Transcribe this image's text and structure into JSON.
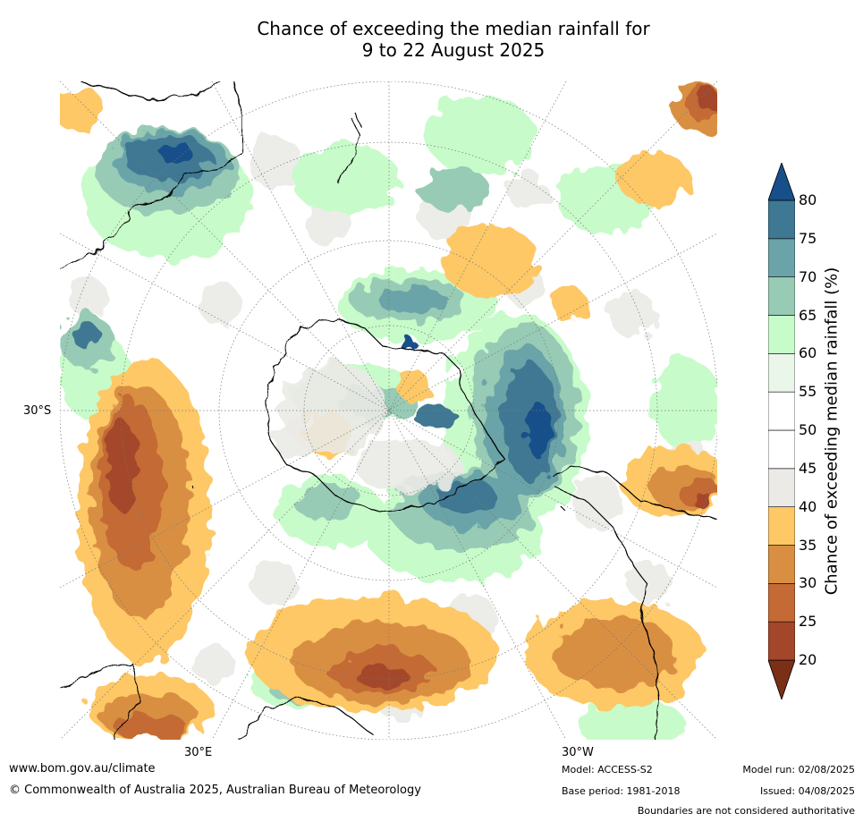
{
  "title": {
    "line1": "Chance of exceeding the median rainfall for",
    "line2": "9 to 22 August 2025"
  },
  "axis_labels": {
    "lat": "30°S",
    "lon_east": "30°E",
    "lon_west": "30°W"
  },
  "colorbar": {
    "label": "Chance of exceeding median rainfall (%)",
    "ticks": [
      "20",
      "25",
      "30",
      "35",
      "40",
      "45",
      "50",
      "55",
      "60",
      "65",
      "70",
      "75",
      "80"
    ],
    "colors": [
      "#7a2f17",
      "#a4462a",
      "#c46a34",
      "#d98f42",
      "#fdc865",
      "#ebeae6",
      "#ffffff",
      "#ffffff",
      "#eaf6ea",
      "#c8fbca",
      "#98cbb5",
      "#6ba4a8",
      "#3f7893",
      "#164f8a"
    ]
  },
  "footer": {
    "website": "www.bom.gov.au/climate",
    "copyright": "© Commonwealth of Australia 2025, Australian Bureau of Meteorology",
    "model": "Model: ACCESS-S2",
    "base_period": "Base period: 1981-2018",
    "model_run": "Model run: 02/08/2025",
    "issued": "Issued: 04/08/2025",
    "disclaimer": "Boundaries are not considered authoritative"
  }
}
